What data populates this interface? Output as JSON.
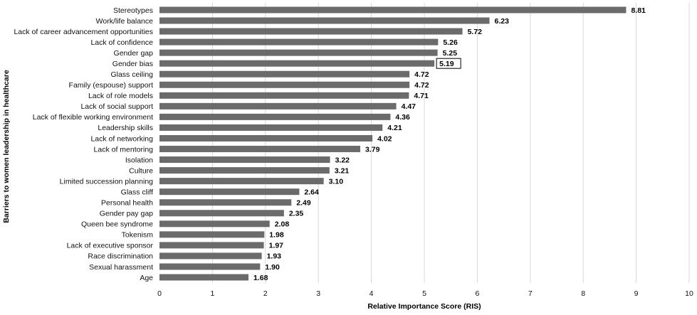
{
  "chart_data": {
    "type": "bar",
    "orientation": "horizontal",
    "xlabel": "Relative Importance Score (RIS)",
    "ylabel": "Barriers to women leadership in healthcare",
    "xlim": [
      0,
      10
    ],
    "xticks": [
      0,
      1,
      2,
      3,
      4,
      5,
      6,
      7,
      8,
      9,
      10
    ],
    "grid": "vertical",
    "bar_color": "#6b6b6b",
    "highlighted_category": "Gender bias",
    "categories": [
      "Stereotypes",
      "Work/life balance",
      "Lack of career advancement opportunities",
      "Lack of confidence",
      "Gender gap",
      "Gender bias",
      "Glass ceiling",
      "Family (espouse) support",
      "Lack of role models",
      "Lack of social support",
      "Lack of flexible working environment",
      "Leadership skills",
      "Lack of networking",
      "Lack of mentoring",
      "Isolation",
      "Culture",
      "Limited succession planning",
      "Glass cliff",
      "Personal health",
      "Gender pay gap",
      "Queen bee syndrome",
      "Tokenism",
      "Lack of executive sponsor",
      "Race discrimination",
      "Sexual harassment",
      "Age"
    ],
    "values": [
      8.81,
      6.23,
      5.72,
      5.26,
      5.25,
      5.19,
      4.72,
      4.72,
      4.71,
      4.47,
      4.36,
      4.21,
      4.02,
      3.79,
      3.22,
      3.21,
      3.1,
      2.64,
      2.49,
      2.35,
      2.08,
      1.98,
      1.97,
      1.93,
      1.9,
      1.68
    ],
    "value_labels": [
      "8.81",
      "6.23",
      "5.72",
      "5.26",
      "5.25",
      "5.19",
      "4.72",
      "4.72",
      "4.71",
      "4.47",
      "4.36",
      "4.21",
      "4.02",
      "3.79",
      "3.22",
      "3.21",
      "3.10",
      "2.64",
      "2.49",
      "2.35",
      "2.08",
      "1.98",
      "1.97",
      "1.93",
      "1.90",
      "1.68"
    ]
  }
}
